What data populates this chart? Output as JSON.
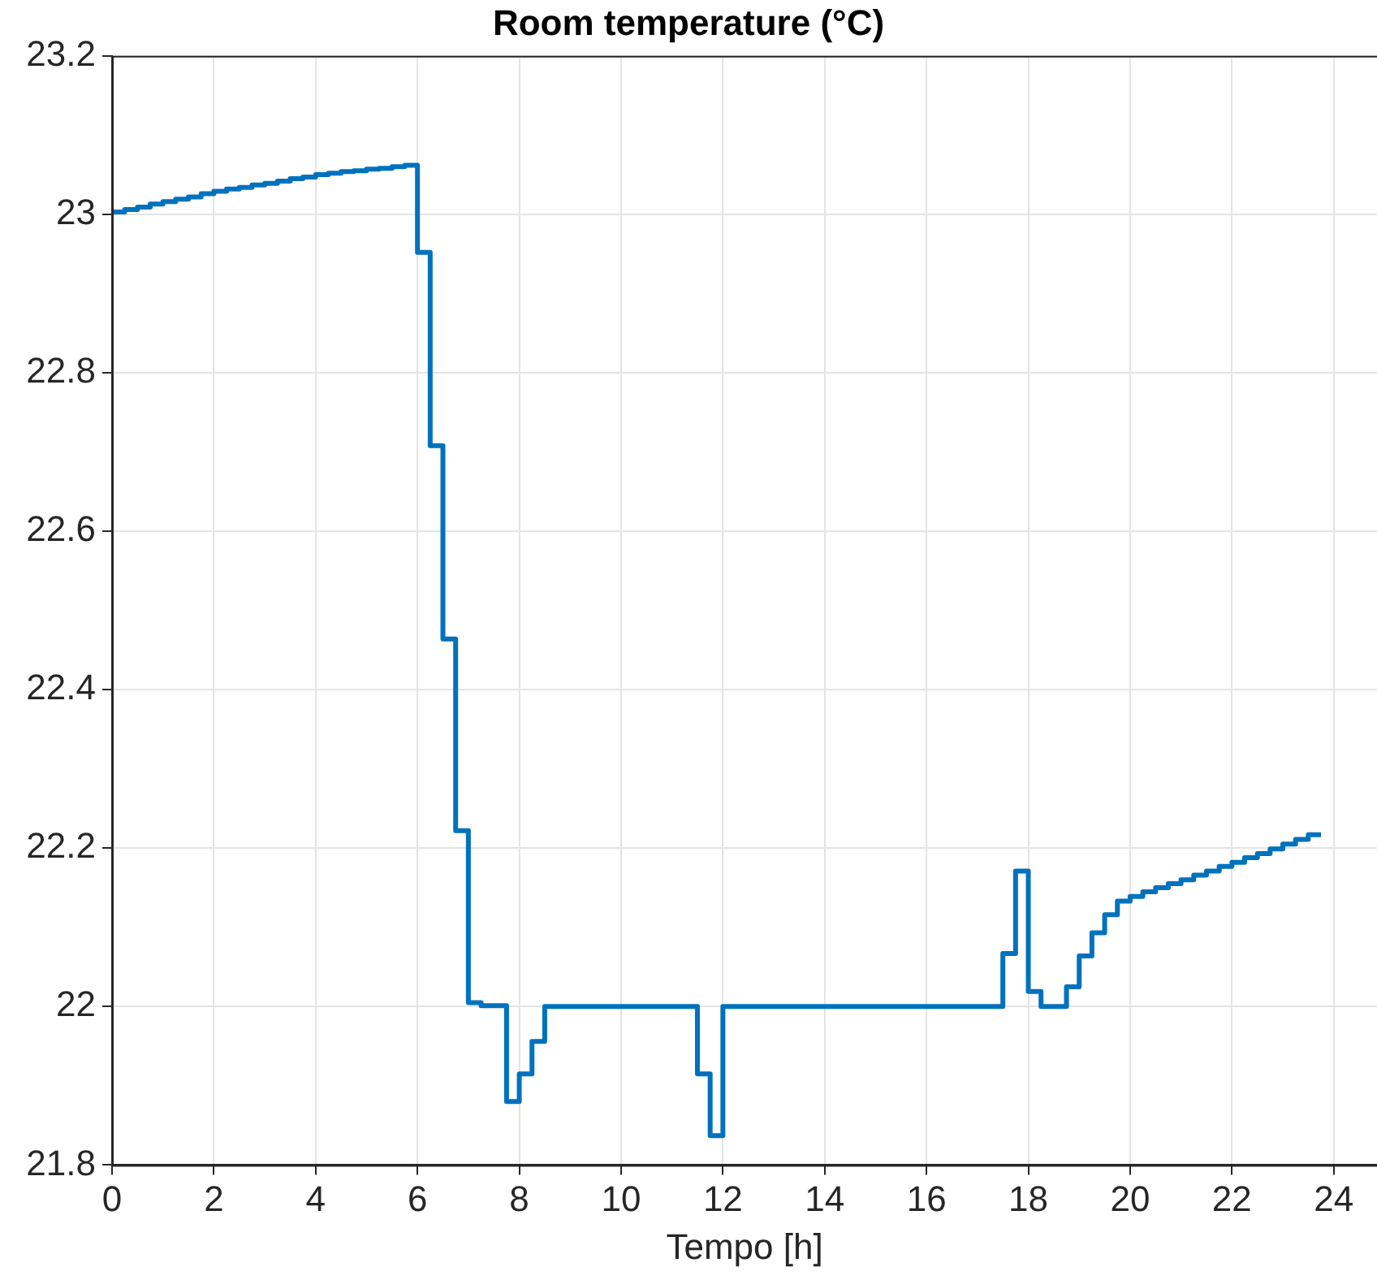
{
  "chart_data": {
    "type": "step",
    "title": "Room temperature (°C)",
    "xlabel": "Tempo [h]",
    "x": [
      0,
      0.25,
      0.5,
      0.75,
      1,
      1.25,
      1.5,
      1.75,
      2,
      2.25,
      2.5,
      2.75,
      3,
      3.25,
      3.5,
      3.75,
      4,
      4.25,
      4.5,
      4.75,
      5,
      5.25,
      5.5,
      5.75,
      6,
      6.25,
      6.5,
      6.75,
      7,
      7.25,
      7.5,
      7.75,
      8,
      8.25,
      8.5,
      11.25,
      11.5,
      11.75,
      12,
      17.25,
      17.5,
      17.75,
      18,
      18.25,
      18.5,
      18.75,
      19,
      19.25,
      19.5,
      19.75,
      20,
      20.25,
      20.5,
      20.75,
      21,
      21.25,
      21.5,
      21.75,
      22,
      22.25,
      22.5,
      22.75,
      23,
      23.25,
      23.5,
      23.75
    ],
    "series": [
      {
        "color": "#0072bd",
        "values": [
          23.003,
          23.006,
          23.009,
          23.013,
          23.016,
          23.019,
          23.022,
          23.026,
          23.029,
          23.032,
          23.034,
          23.037,
          23.039,
          23.042,
          23.045,
          23.047,
          23.05,
          23.052,
          23.054,
          23.055,
          23.057,
          23.058,
          23.06,
          23.062,
          22.952,
          22.708,
          22.464,
          22.222,
          22.005,
          22.001,
          22.001,
          21.88,
          21.915,
          21.956,
          22.0,
          22.0,
          21.915,
          21.837,
          22.0,
          22.0,
          22.067,
          22.171,
          22.019,
          22.0,
          22.0,
          22.025,
          22.064,
          22.093,
          22.116,
          22.133,
          22.139,
          22.145,
          22.15,
          22.155,
          22.16,
          22.166,
          22.171,
          22.177,
          22.182,
          22.188,
          22.193,
          22.199,
          22.205,
          22.211,
          22.217,
          22.217
        ]
      }
    ],
    "xlim": [
      0,
      24.85
    ],
    "xticks": [
      0,
      2,
      4,
      6,
      8,
      10,
      12,
      14,
      16,
      18,
      20,
      22,
      24
    ],
    "ylim": [
      21.8,
      23.2
    ],
    "yticks": [
      21.8,
      22,
      22.2,
      22.4,
      22.6,
      22.8,
      23,
      23.2
    ],
    "grid": true,
    "legend": false,
    "marker": "none",
    "line_style": "solid"
  }
}
